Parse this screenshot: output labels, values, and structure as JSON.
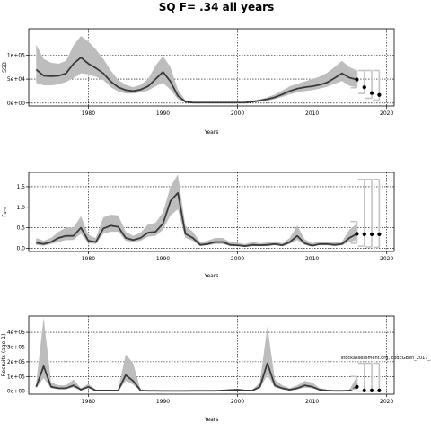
{
  "figure": {
    "title": "SQ F= .34 all years"
  },
  "colors": {
    "band": "#bdbdbd",
    "line": "#3a3a3a",
    "proj_band": "#c4c4c4",
    "point": "#000000"
  },
  "chart_data": [
    {
      "type": "line",
      "xlabel": "Years",
      "ylabel": "SSB",
      "xlim": [
        1972,
        2021
      ],
      "ylim": [
        -6000,
        155000
      ],
      "xticks": [
        1980,
        1990,
        2000,
        2010,
        2020
      ],
      "xtick_labels": [
        "1980",
        "1990",
        "2000",
        "2010",
        "2020"
      ],
      "yticks": [
        0,
        50000,
        100000
      ],
      "ytick_labels": [
        "0e+00",
        "5e+04",
        "1e+05"
      ],
      "grid": true,
      "annotation": "",
      "x": [
        1973,
        1974,
        1975,
        1976,
        1977,
        1978,
        1979,
        1980,
        1981,
        1982,
        1983,
        1984,
        1985,
        1986,
        1987,
        1988,
        1989,
        1990,
        1991,
        1992,
        1993,
        1994,
        1995,
        1996,
        1997,
        1998,
        1999,
        2000,
        2001,
        2002,
        2003,
        2004,
        2005,
        2006,
        2007,
        2008,
        2009,
        2010,
        2011,
        2012,
        2013,
        2014,
        2015,
        2016
      ],
      "y": [
        70000,
        57000,
        56000,
        57000,
        62000,
        82000,
        95000,
        82000,
        73000,
        62000,
        45000,
        33000,
        27000,
        25000,
        28000,
        35000,
        50000,
        65000,
        45000,
        15000,
        3000,
        1000,
        1000,
        1000,
        1000,
        1000,
        1000,
        1000,
        1000,
        3000,
        5000,
        8000,
        12000,
        18000,
        25000,
        30000,
        33000,
        35000,
        38000,
        43000,
        52000,
        62000,
        53000,
        49000
      ],
      "lower": [
        42000,
        37000,
        37000,
        39000,
        44000,
        52000,
        62000,
        60000,
        55000,
        48000,
        33000,
        24000,
        20000,
        20000,
        22000,
        26000,
        35000,
        42000,
        28000,
        8000,
        1000,
        500,
        500,
        500,
        500,
        500,
        500,
        500,
        500,
        1500,
        3000,
        5000,
        8000,
        13000,
        18000,
        22000,
        25000,
        27000,
        30000,
        34000,
        40000,
        46000,
        36000,
        33000
      ],
      "upper": [
        122000,
        92000,
        84000,
        82000,
        88000,
        120000,
        140000,
        128000,
        112000,
        92000,
        68000,
        48000,
        38000,
        33000,
        38000,
        50000,
        78000,
        98000,
        75000,
        28000,
        6000,
        2000,
        2000,
        2000,
        2000,
        2000,
        2000,
        2000,
        2000,
        5000,
        8000,
        12000,
        18000,
        26000,
        35000,
        40000,
        45000,
        50000,
        55000,
        63000,
        75000,
        88000,
        75000,
        68000
      ],
      "proj_x": [
        2016,
        2017,
        2018,
        2019
      ],
      "proj_y": [
        49000,
        33000,
        21000,
        17000
      ],
      "proj_lower": [
        32000,
        20000,
        10000,
        6000
      ],
      "proj_upper": [
        68000,
        68000,
        68000,
        68000
      ]
    },
    {
      "type": "line",
      "xlabel": "Years",
      "ylabel": "F₄₋₈",
      "xlim": [
        1972,
        2021
      ],
      "ylim": [
        -0.08,
        1.85
      ],
      "xticks": [
        1980,
        1990,
        2000,
        2010,
        2020
      ],
      "xtick_labels": [
        "1980",
        "1990",
        "2000",
        "2010",
        "2020"
      ],
      "yticks": [
        0,
        0.5,
        1.0,
        1.5
      ],
      "ytick_labels": [
        "0.0",
        "0.5",
        "1.0",
        "1.5"
      ],
      "grid": true,
      "annotation": "",
      "x": [
        1973,
        1974,
        1975,
        1976,
        1977,
        1978,
        1979,
        1980,
        1981,
        1982,
        1983,
        1984,
        1985,
        1986,
        1987,
        1988,
        1989,
        1990,
        1991,
        1992,
        1993,
        1994,
        1995,
        1996,
        1997,
        1998,
        1999,
        2000,
        2001,
        2002,
        2003,
        2004,
        2005,
        2006,
        2007,
        2008,
        2009,
        2010,
        2011,
        2012,
        2013,
        2014,
        2015,
        2016
      ],
      "y": [
        0.13,
        0.1,
        0.15,
        0.25,
        0.3,
        0.3,
        0.5,
        0.18,
        0.15,
        0.48,
        0.55,
        0.52,
        0.25,
        0.2,
        0.25,
        0.38,
        0.4,
        0.6,
        1.15,
        1.35,
        0.35,
        0.25,
        0.08,
        0.1,
        0.15,
        0.15,
        0.08,
        0.07,
        0.05,
        0.08,
        0.07,
        0.08,
        0.1,
        0.07,
        0.15,
        0.3,
        0.12,
        0.06,
        0.1,
        0.1,
        0.08,
        0.1,
        0.25,
        0.35
      ],
      "lower": [
        0.08,
        0.06,
        0.1,
        0.15,
        0.2,
        0.2,
        0.35,
        0.12,
        0.1,
        0.35,
        0.4,
        0.4,
        0.18,
        0.15,
        0.18,
        0.28,
        0.3,
        0.45,
        0.8,
        0.95,
        0.25,
        0.18,
        0.05,
        0.07,
        0.1,
        0.1,
        0.05,
        0.05,
        0.03,
        0.05,
        0.05,
        0.05,
        0.07,
        0.05,
        0.1,
        0.2,
        0.08,
        0.04,
        0.07,
        0.07,
        0.05,
        0.07,
        0.15,
        0.2
      ],
      "upper": [
        0.25,
        0.18,
        0.25,
        0.4,
        0.5,
        0.5,
        0.78,
        0.32,
        0.25,
        0.75,
        0.82,
        0.8,
        0.4,
        0.3,
        0.38,
        0.58,
        0.62,
        0.88,
        1.5,
        1.8,
        0.55,
        0.4,
        0.15,
        0.18,
        0.25,
        0.25,
        0.15,
        0.13,
        0.1,
        0.15,
        0.12,
        0.14,
        0.16,
        0.12,
        0.25,
        0.55,
        0.22,
        0.12,
        0.16,
        0.16,
        0.14,
        0.16,
        0.45,
        0.6
      ],
      "proj_x": [
        2016,
        2017,
        2018,
        2019
      ],
      "proj_y": [
        0.35,
        0.34,
        0.34,
        0.34
      ],
      "proj_lower": [
        0.12,
        0.05,
        0.03,
        0.02
      ],
      "proj_upper": [
        0.65,
        1.68,
        1.68,
        1.68
      ]
    },
    {
      "type": "line",
      "xlabel": "Years",
      "ylabel": "Recruits (age 1)",
      "xlim": [
        1972,
        2021
      ],
      "ylim": [
        -20000,
        510000
      ],
      "xticks": [
        1980,
        1990,
        2000,
        2010,
        2020
      ],
      "xtick_labels": [
        "1980",
        "1990",
        "2000",
        "2010",
        "2020"
      ],
      "yticks": [
        0,
        100000,
        200000,
        300000,
        400000
      ],
      "ytick_labels": [
        "0e+00",
        "1e+05",
        "2e+05",
        "3e+05",
        "4e+05"
      ],
      "grid": true,
      "annotation": "stockassessment.org, codEGBen_2017_",
      "x": [
        1973,
        1974,
        1975,
        1976,
        1977,
        1978,
        1979,
        1980,
        1981,
        1982,
        1983,
        1984,
        1985,
        1986,
        1987,
        1988,
        1989,
        1990,
        1991,
        1992,
        1993,
        1994,
        1995,
        1996,
        1997,
        1998,
        1999,
        2000,
        2001,
        2002,
        2003,
        2004,
        2005,
        2006,
        2007,
        2008,
        2009,
        2010,
        2011,
        2012,
        2013,
        2014,
        2015,
        2016
      ],
      "y": [
        30000,
        170000,
        30000,
        20000,
        20000,
        40000,
        10000,
        30000,
        5000,
        5000,
        5000,
        5000,
        110000,
        70000,
        5000,
        3000,
        3000,
        2000,
        2000,
        2000,
        2000,
        3000,
        3000,
        3000,
        3000,
        5000,
        8000,
        10000,
        5000,
        5000,
        30000,
        190000,
        40000,
        20000,
        10000,
        20000,
        40000,
        30000,
        10000,
        5000,
        3000,
        3000,
        5000,
        30000
      ],
      "lower": [
        20000,
        90000,
        20000,
        15000,
        15000,
        25000,
        6000,
        20000,
        3000,
        3000,
        3000,
        3000,
        70000,
        45000,
        3000,
        2000,
        2000,
        1000,
        1000,
        1000,
        1000,
        2000,
        2000,
        2000,
        2000,
        3000,
        5000,
        7000,
        3000,
        3000,
        20000,
        110000,
        25000,
        13000,
        6000,
        13000,
        25000,
        20000,
        6000,
        3000,
        2000,
        2000,
        3000,
        15000
      ],
      "upper": [
        50000,
        500000,
        60000,
        40000,
        40000,
        80000,
        20000,
        50000,
        10000,
        10000,
        10000,
        10000,
        250000,
        190000,
        10000,
        5000,
        5000,
        4000,
        4000,
        4000,
        4000,
        5000,
        5000,
        5000,
        5000,
        8000,
        12000,
        15000,
        8000,
        10000,
        60000,
        440000,
        80000,
        40000,
        20000,
        40000,
        70000,
        60000,
        20000,
        10000,
        5000,
        5000,
        10000,
        100000
      ],
      "proj_x": [
        2016,
        2017,
        2018,
        2019
      ],
      "proj_y": [
        30000,
        5000,
        5000,
        5000
      ],
      "proj_lower": [
        15000,
        1000,
        1000,
        1000
      ],
      "proj_upper": [
        100000,
        190000,
        190000,
        190000
      ]
    }
  ]
}
